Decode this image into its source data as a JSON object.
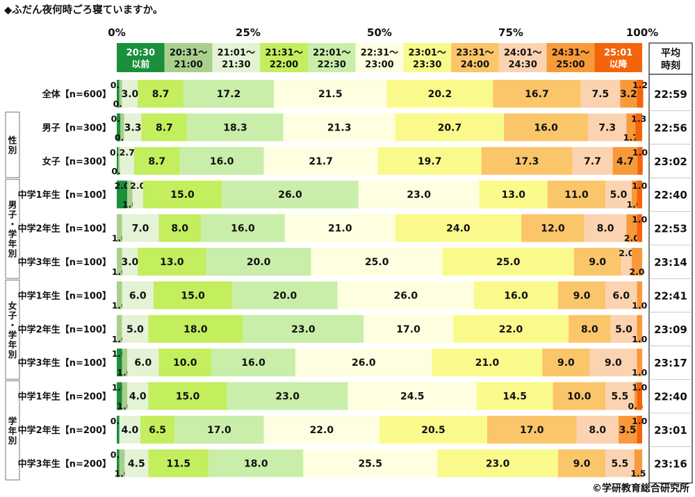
{
  "title": "◆ふだん夜何時ごろ寝ていますか。",
  "copyright": "©学研教育総合研究所",
  "chart_data": {
    "type": "bar",
    "orientation": "horizontal-stacked-100",
    "title": "◆ふだん夜何時ごろ寝ていますか。",
    "xlim": [
      0,
      100
    ],
    "x_ticks": [
      "0%",
      "25%",
      "50%",
      "75%",
      "100%"
    ],
    "legend_placement": "top",
    "categories": [
      {
        "time": "20:30",
        "sub": "以前",
        "color": "#1a8f3c",
        "text_color": "#ffffff"
      },
      {
        "time": "20:31〜",
        "sub": "21:00",
        "color": "#a9cf8c",
        "text_color": "#111111"
      },
      {
        "time": "21:01〜",
        "sub": "21:30",
        "color": "#e4f2d6",
        "text_color": "#111111"
      },
      {
        "time": "21:31〜",
        "sub": "22:00",
        "color": "#c3ee5e",
        "text_color": "#111111"
      },
      {
        "time": "22:01〜",
        "sub": "22:30",
        "color": "#c9eeaa",
        "text_color": "#111111"
      },
      {
        "time": "22:31〜",
        "sub": "23:00",
        "color": "#fefee0",
        "text_color": "#111111"
      },
      {
        "time": "23:01〜",
        "sub": "23:30",
        "color": "#fafa8c",
        "text_color": "#111111"
      },
      {
        "time": "23:31〜",
        "sub": "24:00",
        "color": "#fbc56a",
        "text_color": "#111111"
      },
      {
        "time": "24:01〜",
        "sub": "24:30",
        "color": "#fcd3b0",
        "text_color": "#111111"
      },
      {
        "time": "24:31〜",
        "sub": "25:00",
        "color": "#f89a3a",
        "text_color": "#111111"
      },
      {
        "time": "25:01",
        "sub": "以降",
        "color": "#f4640a",
        "text_color": "#ffffff"
      }
    ],
    "avg_header": [
      "平均",
      "時刻"
    ],
    "groups": [
      {
        "label": "",
        "rows": [
          0
        ]
      },
      {
        "label": "性別",
        "rows": [
          1,
          2
        ]
      },
      {
        "label": "男子・学年別",
        "rows": [
          3,
          4,
          5
        ]
      },
      {
        "label": "女子・学年別",
        "rows": [
          6,
          7,
          8
        ]
      },
      {
        "label": "学年別",
        "rows": [
          9,
          10,
          11
        ]
      }
    ],
    "rows": [
      {
        "label": "全体【n=600】",
        "avg": "22:59",
        "values": [
          0.5,
          0.5,
          3.0,
          8.7,
          17.2,
          21.5,
          20.2,
          16.7,
          7.5,
          3.2,
          1.2
        ]
      },
      {
        "label": "男子【n=300】",
        "avg": "22:56",
        "values": [
          0.7,
          0.7,
          3.3,
          8.7,
          18.3,
          21.3,
          20.7,
          16.0,
          7.3,
          1.7,
          1.3
        ]
      },
      {
        "label": "女子【n=300】",
        "avg": "23:02",
        "values": [
          0.3,
          0.3,
          2.7,
          8.7,
          16.0,
          21.7,
          19.7,
          17.3,
          7.7,
          4.7,
          1.0
        ]
      },
      {
        "label": "中学1年生【n=100】",
        "avg": "22:40",
        "values": [
          2.0,
          1.0,
          2.0,
          15.0,
          26.0,
          23.0,
          13.0,
          11.0,
          5.0,
          1.0,
          1.0
        ]
      },
      {
        "label": "中学2年生【n=100】",
        "avg": "22:53",
        "values": [
          0.0,
          1.0,
          7.0,
          8.0,
          16.0,
          21.0,
          24.0,
          12.0,
          8.0,
          2.0,
          1.0
        ]
      },
      {
        "label": "中学3年生【n=100】",
        "avg": "23:14",
        "values": [
          0.0,
          1.0,
          3.0,
          13.0,
          20.0,
          25.0,
          25.0,
          9.0,
          2.0,
          2.0,
          0.0
        ]
      },
      {
        "label": "中学1年生【n=100】",
        "avg": "22:41",
        "values": [
          0.0,
          1.0,
          6.0,
          15.0,
          20.0,
          26.0,
          16.0,
          9.0,
          6.0,
          1.0,
          0.0
        ]
      },
      {
        "label": "中学2年生【n=100】",
        "avg": "23:09",
        "values": [
          0.0,
          1.0,
          5.0,
          18.0,
          23.0,
          17.0,
          22.0,
          8.0,
          5.0,
          1.0,
          0.0
        ]
      },
      {
        "label": "中学3年生【n=100】",
        "avg": "23:17",
        "values": [
          1.0,
          1.0,
          6.0,
          10.0,
          16.0,
          26.0,
          21.0,
          9.0,
          9.0,
          1.0,
          0.0
        ]
      },
      {
        "label": "中学1年生【n=200】",
        "avg": "22:40",
        "values": [
          1.0,
          1.0,
          4.0,
          15.0,
          23.0,
          24.5,
          14.5,
          10.0,
          5.5,
          0.5,
          1.0
        ]
      },
      {
        "label": "中学2年生【n=200】",
        "avg": "23:01",
        "values": [
          0.5,
          0.0,
          4.0,
          6.5,
          17.0,
          22.0,
          20.5,
          17.0,
          8.0,
          3.5,
          1.0
        ]
      },
      {
        "label": "中学3年生【n=200】",
        "avg": "23:16",
        "values": [
          0.5,
          1.0,
          4.5,
          11.5,
          18.0,
          25.5,
          23.0,
          9.0,
          5.5,
          1.5,
          0.0
        ]
      }
    ]
  }
}
